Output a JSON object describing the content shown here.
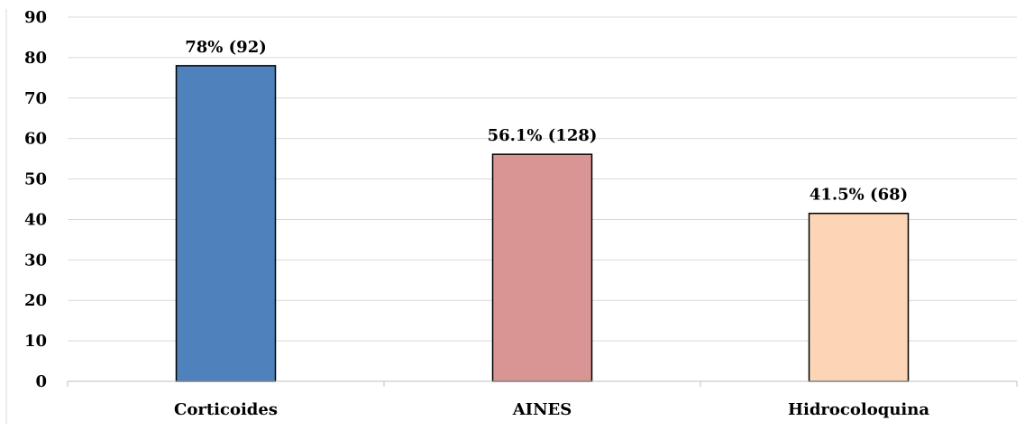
{
  "chart_data": {
    "type": "bar",
    "title": "",
    "xlabel": "",
    "ylabel": "",
    "categories": [
      "Corticoides",
      "AINES",
      "Hidrocoloquina"
    ],
    "values": [
      78,
      56.1,
      41.5
    ],
    "data_labels": [
      "78% (92)",
      "56.1% (128)",
      "41.5% (68)"
    ],
    "colors": [
      "#4f81bd",
      "#d99594",
      "#fbd5b5"
    ],
    "ylim": [
      0,
      90
    ],
    "yticks": [
      0,
      10,
      20,
      30,
      40,
      50,
      60,
      70,
      80,
      90
    ],
    "grid": true,
    "legend": "none"
  }
}
